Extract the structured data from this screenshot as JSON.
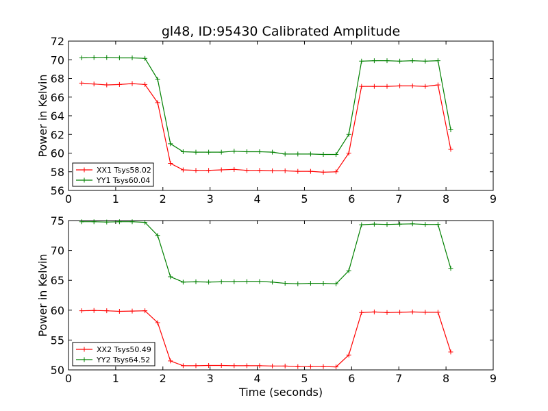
{
  "chart_data": {
    "title": "gl48, ID:95430 Calibrated Amplitude",
    "xlabel": "Time (seconds)",
    "panels": [
      {
        "type": "line",
        "ylabel": "Power in Kelvin",
        "xlim": [
          0,
          9
        ],
        "ylim": [
          56,
          72
        ],
        "xticks": [
          "0",
          "1",
          "2",
          "3",
          "4",
          "5",
          "6",
          "7",
          "8",
          "9"
        ],
        "yticks": [
          "56",
          "58",
          "60",
          "62",
          "64",
          "66",
          "68",
          "70",
          "72"
        ],
        "legend_position": "lower-left",
        "series": [
          {
            "name": "XX1 Tsys58.02",
            "color": "#ff0000",
            "x": [
              0.28,
              0.54,
              0.81,
              1.08,
              1.35,
              1.62,
              1.89,
              2.16,
              2.43,
              2.7,
              2.97,
              3.24,
              3.51,
              3.78,
              4.05,
              4.32,
              4.59,
              4.86,
              5.13,
              5.4,
              5.67,
              5.94,
              6.21,
              6.48,
              6.75,
              7.02,
              7.29,
              7.56,
              7.83,
              8.1
            ],
            "y": [
              67.5,
              67.4,
              67.3,
              67.35,
              67.45,
              67.35,
              65.4,
              58.9,
              58.2,
              58.15,
              58.15,
              58.2,
              58.25,
              58.15,
              58.15,
              58.1,
              58.1,
              58.05,
              58.05,
              57.95,
              58.0,
              60.0,
              67.15,
              67.15,
              67.15,
              67.2,
              67.2,
              67.15,
              67.3,
              60.4
            ]
          },
          {
            "name": "YY1 Tsys60.04",
            "color": "#008000",
            "x": [
              0.28,
              0.54,
              0.81,
              1.08,
              1.35,
              1.62,
              1.89,
              2.16,
              2.43,
              2.7,
              2.97,
              3.24,
              3.51,
              3.78,
              4.05,
              4.32,
              4.59,
              4.86,
              5.13,
              5.4,
              5.67,
              5.94,
              6.21,
              6.48,
              6.75,
              7.02,
              7.29,
              7.56,
              7.83,
              8.1
            ],
            "y": [
              70.2,
              70.25,
              70.25,
              70.2,
              70.2,
              70.15,
              67.9,
              61.0,
              60.15,
              60.1,
              60.1,
              60.1,
              60.2,
              60.15,
              60.15,
              60.1,
              59.9,
              59.9,
              59.9,
              59.85,
              59.85,
              62.0,
              69.85,
              69.9,
              69.9,
              69.85,
              69.9,
              69.85,
              69.9,
              62.5
            ]
          }
        ]
      },
      {
        "type": "line",
        "ylabel": "Power in Kelvin",
        "xlim": [
          0,
          9
        ],
        "ylim": [
          50,
          75
        ],
        "xticks": [
          "0",
          "1",
          "2",
          "3",
          "4",
          "5",
          "6",
          "7",
          "8",
          "9"
        ],
        "yticks": [
          "50",
          "55",
          "60",
          "65",
          "70",
          "75"
        ],
        "legend_position": "lower-left",
        "series": [
          {
            "name": "XX2 Tsys50.49",
            "color": "#ff0000",
            "x": [
              0.28,
              0.54,
              0.81,
              1.08,
              1.35,
              1.62,
              1.89,
              2.16,
              2.43,
              2.7,
              2.97,
              3.24,
              3.51,
              3.78,
              4.05,
              4.32,
              4.59,
              4.86,
              5.13,
              5.4,
              5.67,
              5.94,
              6.21,
              6.48,
              6.75,
              7.02,
              7.29,
              7.56,
              7.83,
              8.1
            ],
            "y": [
              59.9,
              59.95,
              59.9,
              59.8,
              59.85,
              59.9,
              57.9,
              51.5,
              50.7,
              50.7,
              50.75,
              50.75,
              50.7,
              50.7,
              50.7,
              50.65,
              50.65,
              50.55,
              50.55,
              50.55,
              50.5,
              52.5,
              59.6,
              59.7,
              59.6,
              59.65,
              59.7,
              59.65,
              59.65,
              53.0
            ]
          },
          {
            "name": "YY2 Tsys64.52",
            "color": "#008000",
            "x": [
              0.28,
              0.54,
              0.81,
              1.08,
              1.35,
              1.62,
              1.89,
              2.16,
              2.43,
              2.7,
              2.97,
              3.24,
              3.51,
              3.78,
              4.05,
              4.32,
              4.59,
              4.86,
              5.13,
              5.4,
              5.67,
              5.94,
              6.21,
              6.48,
              6.75,
              7.02,
              7.29,
              7.56,
              7.83,
              8.1
            ],
            "y": [
              74.8,
              74.8,
              74.75,
              74.8,
              74.8,
              74.7,
              72.5,
              65.6,
              64.7,
              64.75,
              64.7,
              64.75,
              64.75,
              64.8,
              64.8,
              64.7,
              64.5,
              64.4,
              64.5,
              64.5,
              64.4,
              66.6,
              74.3,
              74.4,
              74.35,
              74.4,
              74.45,
              74.35,
              74.35,
              67.0
            ]
          }
        ]
      }
    ]
  }
}
